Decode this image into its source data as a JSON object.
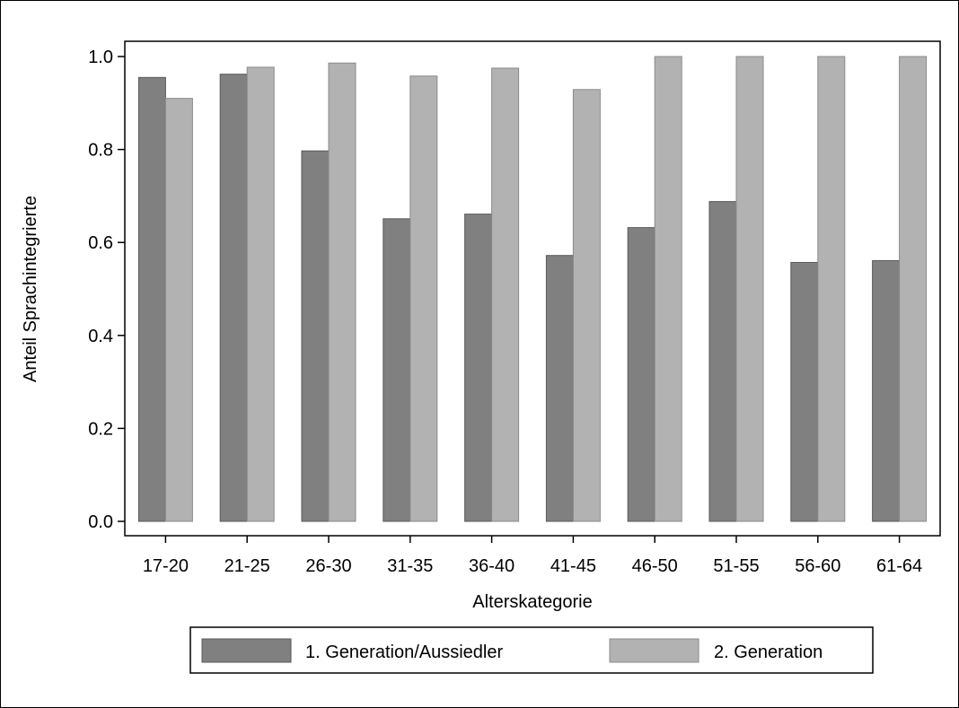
{
  "chart_data": {
    "type": "bar",
    "title": "",
    "xlabel": "Alterskategorie",
    "ylabel": "Anteil Sprachintegrierte",
    "ylim": [
      0,
      1.0
    ],
    "yticks": [
      "0.0",
      "0.2",
      "0.4",
      "0.6",
      "0.8",
      "1.0"
    ],
    "grid": false,
    "legend_position": "bottom",
    "categories": [
      "17-20",
      "21-25",
      "26-30",
      "31-35",
      "36-40",
      "41-45",
      "46-50",
      "51-55",
      "56-60",
      "61-64"
    ],
    "series": [
      {
        "name": "1. Generation/Aussiedler",
        "color": "#808080",
        "values": [
          0.955,
          0.962,
          0.797,
          0.651,
          0.661,
          0.572,
          0.632,
          0.688,
          0.557,
          0.561
        ]
      },
      {
        "name": "2. Generation",
        "color": "#b2b2b2",
        "values": [
          0.91,
          0.977,
          0.986,
          0.958,
          0.975,
          0.929,
          1.0,
          1.0,
          1.0,
          1.0
        ]
      }
    ]
  },
  "colors": {
    "axis": "#000000",
    "bar_edge": "#595959"
  }
}
